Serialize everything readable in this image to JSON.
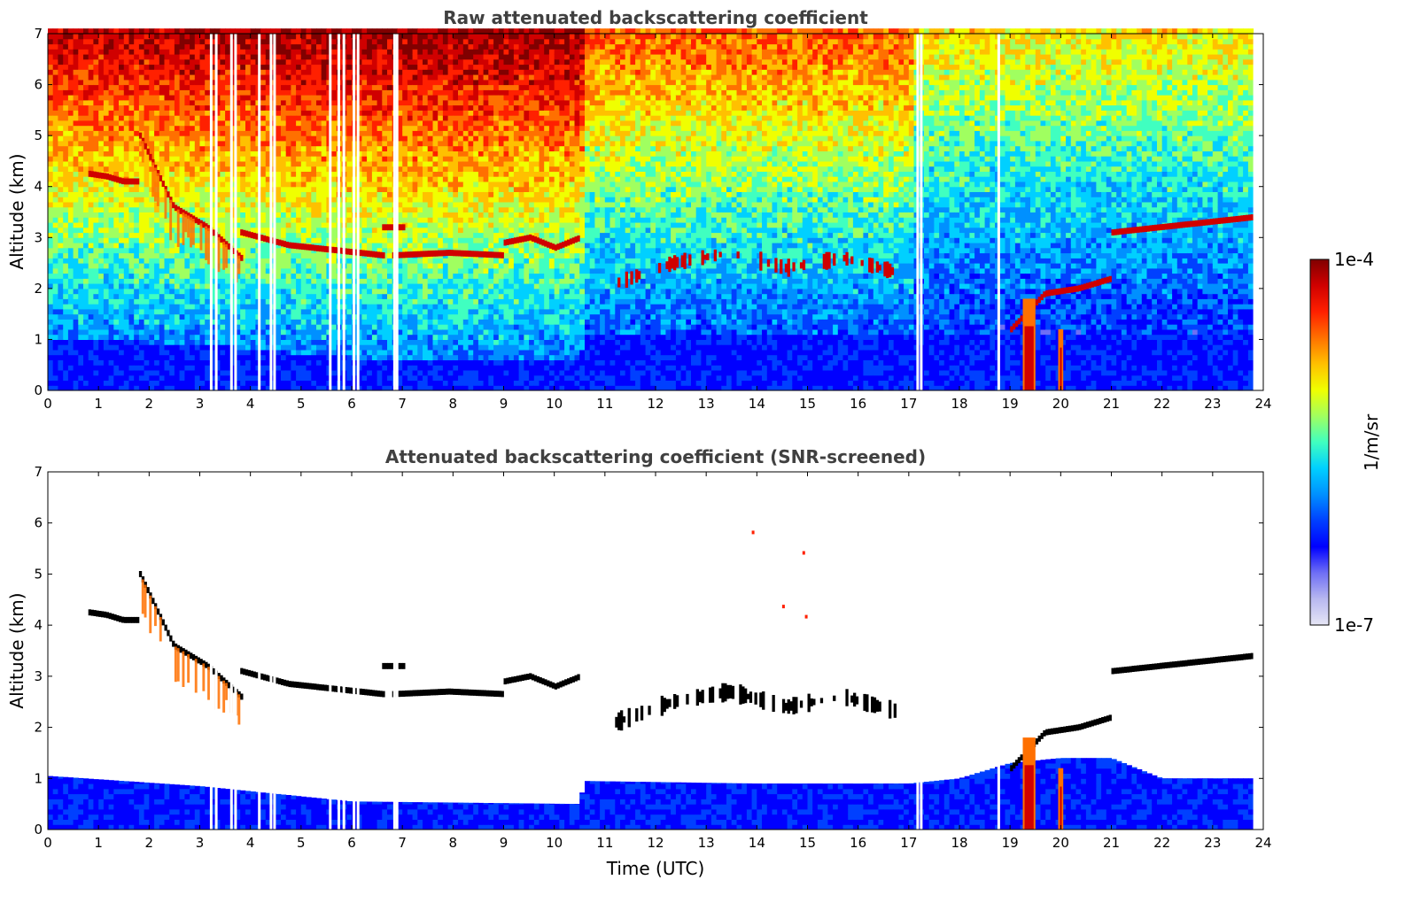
{
  "chart_data": [
    {
      "type": "heatmap",
      "title": "Raw attenuated backscattering coefficient",
      "xlabel": "",
      "ylabel": "Altitude (km)",
      "xlim": [
        0,
        24
      ],
      "ylim": [
        0,
        7
      ],
      "xticks": [
        "0",
        "1",
        "2",
        "3",
        "4",
        "5",
        "6",
        "7",
        "8",
        "9",
        "10",
        "11",
        "12",
        "13",
        "14",
        "15",
        "16",
        "17",
        "18",
        "19",
        "20",
        "21",
        "22",
        "23",
        "24"
      ],
      "yticks": [
        "0",
        "1",
        "2",
        "3",
        "4",
        "5",
        "6",
        "7"
      ],
      "noise_segments": [
        {
          "x": [
            0.0,
            10.55
          ],
          "level": "high"
        },
        {
          "x": [
            10.55,
            17.0
          ],
          "level": "medium"
        },
        {
          "x": [
            17.0,
            23.8
          ],
          "level": "low"
        }
      ],
      "boundary_layer_top_km": [
        [
          0,
          1.0
        ],
        [
          3,
          0.85
        ],
        [
          6,
          0.6
        ],
        [
          10.5,
          0.6
        ],
        [
          10.6,
          1.0
        ],
        [
          17,
          1.0
        ],
        [
          19,
          1.0
        ],
        [
          20,
          1.0
        ],
        [
          23.8,
          1.0
        ]
      ],
      "cloud_layers": [
        {
          "x": [
            0.8,
            1.8
          ],
          "altitude_km": [
            4.25,
            4.2,
            4.1,
            4.1
          ]
        },
        {
          "x": [
            1.8,
            3.8
          ],
          "altitude_km": [
            5.0,
            3.6,
            3.2,
            2.6
          ],
          "falling_streaks": true
        },
        {
          "x": [
            3.8,
            6.6
          ],
          "altitude_km": [
            3.1,
            2.85,
            2.75,
            2.65
          ]
        },
        {
          "x": [
            6.6,
            7.0
          ],
          "altitude_km": [
            3.2,
            3.2
          ]
        },
        {
          "x": [
            6.8,
            9.0
          ],
          "altitude_km": [
            2.65,
            2.7,
            2.65
          ]
        },
        {
          "x": [
            9.0,
            10.5
          ],
          "altitude_km": [
            2.9,
            3.0,
            2.8,
            3.0
          ]
        },
        {
          "x": [
            11.2,
            16.8
          ],
          "altitude_km": [
            2.1,
            2.5,
            2.7,
            2.4,
            2.6,
            2.3
          ],
          "scattered": true
        },
        {
          "x": [
            19.0,
            21.0
          ],
          "altitude_km": [
            1.2,
            1.9,
            2.0,
            2.2
          ]
        },
        {
          "x": [
            21.0,
            23.8
          ],
          "altitude_km": [
            3.1,
            3.2,
            3.3,
            3.4
          ]
        }
      ],
      "plumes": [
        {
          "x": [
            19.25,
            19.5
          ],
          "altitude_km": [
            0,
            1.8
          ]
        },
        {
          "x": [
            19.95,
            20.05
          ],
          "altitude_km": [
            0,
            1.2
          ]
        }
      ],
      "gaps_utc": [
        3.2,
        3.3,
        3.6,
        3.68,
        4.15,
        4.38,
        4.45,
        5.55,
        5.72,
        5.82,
        6.02,
        6.1,
        6.82,
        6.87,
        17.15,
        17.22,
        18.75
      ]
    },
    {
      "type": "heatmap",
      "title": "Attenuated backscattering coefficient (SNR-screened)",
      "xlabel": "Time (UTC)",
      "ylabel": "Altitude (km)",
      "xlim": [
        0,
        24
      ],
      "ylim": [
        0,
        7
      ],
      "xticks": [
        "0",
        "1",
        "2",
        "3",
        "4",
        "5",
        "6",
        "7",
        "8",
        "9",
        "10",
        "11",
        "12",
        "13",
        "14",
        "15",
        "16",
        "17",
        "18",
        "19",
        "20",
        "21",
        "22",
        "23",
        "24"
      ],
      "yticks": [
        "0",
        "1",
        "2",
        "3",
        "4",
        "5",
        "6",
        "7"
      ],
      "screened_cloud_color": "#000000",
      "boundary_layer_top_km": [
        [
          0,
          1.05
        ],
        [
          3,
          0.85
        ],
        [
          6,
          0.55
        ],
        [
          10.5,
          0.5
        ],
        [
          10.6,
          0.95
        ],
        [
          14,
          0.9
        ],
        [
          17,
          0.9
        ],
        [
          18,
          1.0
        ],
        [
          19,
          1.3
        ],
        [
          20,
          1.4
        ],
        [
          21,
          1.4
        ],
        [
          22,
          1.0
        ],
        [
          23.8,
          1.0
        ]
      ],
      "isolated_echoes": [
        {
          "x": 13.9,
          "altitude_km": 5.8
        },
        {
          "x": 14.9,
          "altitude_km": 5.4
        },
        {
          "x": 14.5,
          "altitude_km": 4.35
        },
        {
          "x": 14.95,
          "altitude_km": 4.15
        }
      ]
    }
  ],
  "colorbar": {
    "label": "1/m/sr",
    "max_label": "1e-4",
    "min_label": "1e-7",
    "colors": [
      "#e6e6f5",
      "#b8b8f0",
      "#6e6ef5",
      "#0000ff",
      "#0040ff",
      "#0090ff",
      "#00d0ff",
      "#40ffc0",
      "#a0ff60",
      "#f0ff00",
      "#ffc000",
      "#ff7000",
      "#ff2000",
      "#d00000",
      "#800000"
    ]
  }
}
